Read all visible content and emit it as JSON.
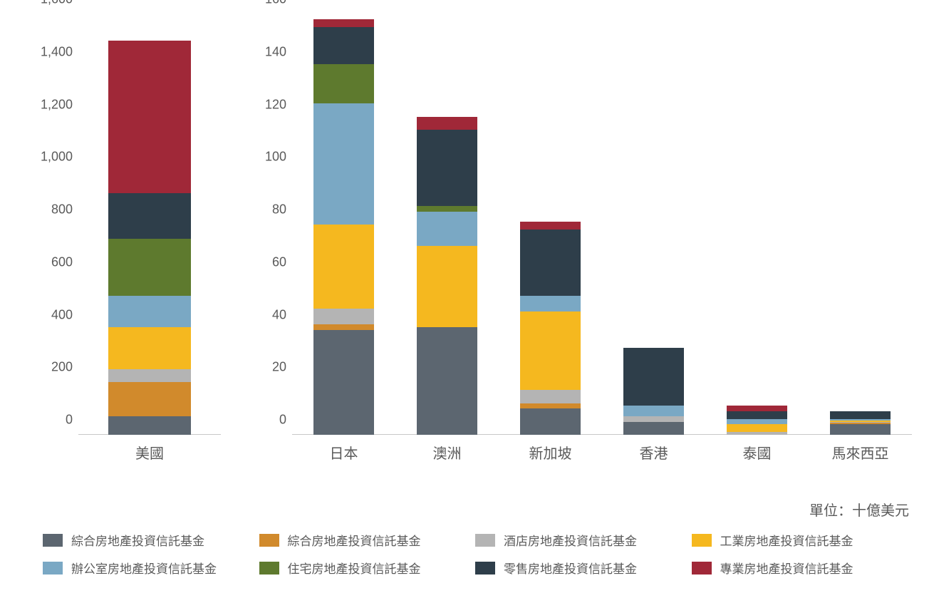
{
  "chart": {
    "type": "stacked-bar-dual-axis",
    "background_color": "#ffffff",
    "axis_text_color": "#5a5a5a",
    "axis_fontsize": 18,
    "xlabel_fontsize": 20,
    "bar_width_ratio": 0.58,
    "series": [
      {
        "key": "diversified1",
        "label": "綜合房地產投資信託基金",
        "color": "#5c6670"
      },
      {
        "key": "diversified2",
        "label": "綜合房地產投資信託基金",
        "color": "#d18a2c"
      },
      {
        "key": "hotel",
        "label": "酒店房地產投資信託基金",
        "color": "#b4b4b4"
      },
      {
        "key": "industrial",
        "label": "工業房地產投資信託基金",
        "color": "#f5b81f"
      },
      {
        "key": "office",
        "label": "辦公室房地產投資信託基金",
        "color": "#7aa8c4"
      },
      {
        "key": "residential",
        "label": "住宅房地產投資信託基金",
        "color": "#5e7a2e"
      },
      {
        "key": "retail",
        "label": "零售房地產投資信託基金",
        "color": "#2e3e4a"
      },
      {
        "key": "specialty",
        "label": "專業房地產投資信託基金",
        "color": "#a02838"
      }
    ],
    "subplots": {
      "left": {
        "ylim": [
          0,
          1600
        ],
        "ytick_step": 200,
        "categories": [
          "美國"
        ],
        "data": {
          "美國": {
            "diversified1": 70,
            "diversified2": 130,
            "hotel": 50,
            "industrial": 160,
            "office": 120,
            "residential": 215,
            "retail": 175,
            "specialty": 580
          }
        }
      },
      "right": {
        "ylim": [
          0,
          160
        ],
        "ytick_step": 20,
        "categories": [
          "日本",
          "澳洲",
          "新加坡",
          "香港",
          "泰國",
          "馬來西亞"
        ],
        "data": {
          "日本": {
            "diversified1": 40,
            "diversified2": 2,
            "hotel": 6,
            "industrial": 32,
            "office": 46,
            "residential": 15,
            "retail": 14,
            "specialty": 3
          },
          "澳洲": {
            "diversified1": 41,
            "diversified2": 0,
            "hotel": 0,
            "industrial": 31,
            "office": 13,
            "residential": 2,
            "retail": 29,
            "specialty": 5
          },
          "新加坡": {
            "diversified1": 10,
            "diversified2": 2,
            "hotel": 5,
            "industrial": 30,
            "office": 6,
            "residential": 0,
            "retail": 25,
            "specialty": 3
          },
          "香港": {
            "diversified1": 5,
            "diversified2": 0,
            "hotel": 2,
            "industrial": 0,
            "office": 4,
            "residential": 0,
            "retail": 22,
            "specialty": 0
          },
          "泰國": {
            "diversified1": 0,
            "diversified2": 0,
            "hotel": 1,
            "industrial": 3,
            "office": 2,
            "residential": 0,
            "retail": 3,
            "specialty": 2
          },
          "馬來西亞": {
            "diversified1": 4,
            "diversified2": 0.5,
            "hotel": 0.5,
            "industrial": 0.5,
            "office": 0.5,
            "residential": 0,
            "retail": 3,
            "specialty": 0
          }
        }
      }
    },
    "unit_label": "單位：十億美元"
  }
}
